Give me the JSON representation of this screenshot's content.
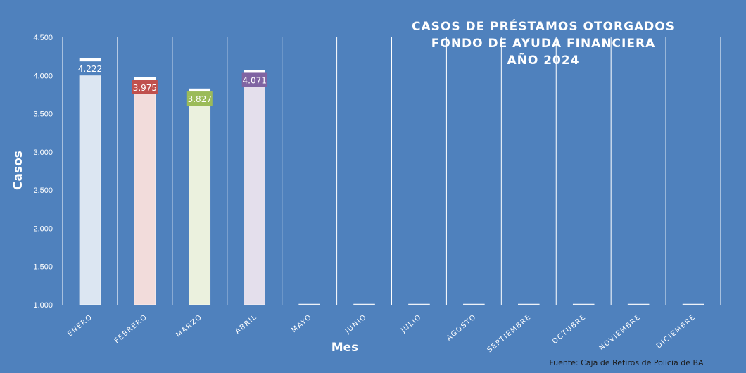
{
  "chart_data": {
    "type": "bar",
    "title_lines": [
      "CASOS DE PRÉSTAMOS OTORGADOS",
      "FONDO DE AYUDA FINANCIERA",
      "AÑO 2024"
    ],
    "xlabel": "Mes",
    "ylabel": "Casos",
    "source": "Fuente: Caja de Retiros de Policia de BA",
    "categories": [
      "ENERO",
      "FEBRERO",
      "MARZO",
      "ABRIL",
      "MAYO",
      "JUNIO",
      "JULIO",
      "AGOSTO",
      "SEPTIEMBRE",
      "OCTUBRE",
      "NOVIEMBRE",
      "DICIEMBRE"
    ],
    "values": [
      4222,
      3975,
      3827,
      4071,
      1000,
      1000,
      1000,
      1000,
      1000,
      1000,
      1000,
      1000
    ],
    "data_labels": [
      "4.222",
      "3.975",
      "3.827",
      "4.071",
      "",
      "",
      "",
      "",
      "",
      "",
      "",
      ""
    ],
    "ylim": [
      1000,
      4500
    ],
    "yticks": [
      1000,
      1500,
      2000,
      2500,
      3000,
      3500,
      4000,
      4500
    ],
    "ytick_labels": [
      "1.000",
      "1.500",
      "2.000",
      "2.500",
      "3.000",
      "3.500",
      "4.000",
      "4.500"
    ],
    "bar_colors": [
      "#dce6f2",
      "#f2dcdb",
      "#ebf1de",
      "#e4dfec",
      "#dce6f2",
      "#dce6f2",
      "#dce6f2",
      "#dce6f2",
      "#dce6f2",
      "#dce6f2",
      "#dce6f2",
      "#dce6f2"
    ],
    "label_colors": [
      "#4f81bd",
      "#c0504d",
      "#9bbb59",
      "#8064a2",
      "#4f81bd",
      "#4f81bd",
      "#4f81bd",
      "#4f81bd",
      "#4f81bd",
      "#4f81bd",
      "#4f81bd",
      "#4f81bd"
    ],
    "grid": "vertical",
    "legend": "none"
  }
}
